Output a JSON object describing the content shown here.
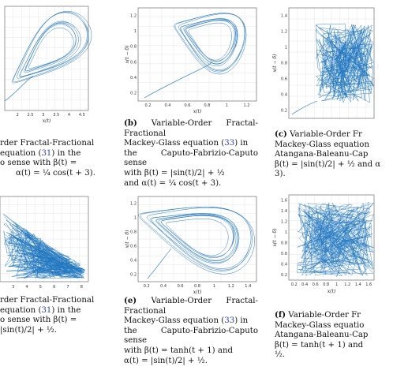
{
  "panels": [
    {
      "id": "a",
      "xlabel": "x(t)",
      "x_ticks": [
        "2",
        "2.5",
        "3",
        "3.5",
        "4",
        "4.5"
      ],
      "y_ticks": [],
      "caption": {
        "label": "",
        "text_1": "rder Fractal-Fractional",
        "text_2": "equation (",
        "ref": "31",
        "text_3": ") in the",
        "text_4": "o sense with β(t) =",
        "text_5": "α(t) = ¼ cos(t + 3)."
      }
    },
    {
      "id": "b",
      "xlabel": "x(t)",
      "ylabel": "x(t − δ)",
      "x_ticks": [
        "0.2",
        "0.4",
        "0.6",
        "0.8",
        "1",
        "1.2"
      ],
      "y_ticks": [
        "0.2",
        "0.4",
        "0.6",
        "0.8",
        "1",
        "1.2"
      ],
      "caption": {
        "label": "(b)",
        "line_1": "Variable-Order Fractal-Fractional",
        "line_2a": "Mackey-Glass equation (",
        "ref": "33",
        "line_2b": ") in",
        "line_3": "the Caputo-Fabrizio-Caputo sense",
        "line_4": "with β(t) = |sin(t)/2| + ½",
        "line_5": "and α(t) = ¼ cos(t + 3)."
      }
    },
    {
      "id": "c",
      "ylabel": "x(t − δ)",
      "y_ticks": [
        "0.2",
        "0.4",
        "0.6",
        "0.8",
        "1",
        "1.2",
        "1.4"
      ],
      "caption": {
        "label": "(c)",
        "line_1": "Variable-Order Fr",
        "line_2": "Mackey-Glass equation",
        "line_3": "Atangana-Baleanu-Cap",
        "line_4": "β(t) = |sin(t)/2| + ½ and α",
        "line_5": "3)."
      }
    },
    {
      "id": "d",
      "x_ticks": [
        "3",
        "4",
        "5",
        "6",
        "7",
        "8"
      ],
      "caption": {
        "line_1": "rder Fractal-Fractional",
        "line_2a": "equation (",
        "ref": "31",
        "line_2b": ") in the",
        "line_3": "o sense with β(t) =",
        "line_4": "|sin(t)/2| + ½."
      }
    },
    {
      "id": "e",
      "xlabel": "x(t)",
      "ylabel": "x(t − δ)",
      "x_ticks": [
        "0.2",
        "0.4",
        "0.6",
        "0.8",
        "1",
        "1.2",
        "1.4"
      ],
      "y_ticks": [
        "0.2",
        "0.4",
        "0.6",
        "0.8",
        "1",
        "1.2"
      ],
      "caption": {
        "label": "(e)",
        "line_1": "Variable-Order Fractal-Fractional",
        "line_2a": "Mackey-Glass equation (",
        "ref": "33",
        "line_2b": ") in",
        "line_3": "the Caputo-Fabrizio-Caputo sense",
        "line_4": "with β(t) = tanh(t + 1) and",
        "line_5": "α(t) = |sin(t)/2| + ½."
      }
    },
    {
      "id": "f",
      "xlabel": "x(t)",
      "ylabel": "x(t − δ)",
      "x_ticks": [
        "0.2",
        "0.4",
        "0.6",
        "0.8",
        "1",
        "1.2",
        "1.4",
        "1.6"
      ],
      "y_ticks": [
        "0.2",
        "0.4",
        "0.6",
        "0.8",
        "1",
        "1.2",
        "1.4",
        "1.6"
      ],
      "caption": {
        "label": "(f)",
        "line_1": "Variable-Order Fr",
        "line_2": "Mackey-Glass equatio",
        "line_3": "Atangana-Baleanu-Cap",
        "line_4": "β(t) = tanh(t + 1) and",
        "line_5": "½."
      }
    }
  ],
  "colors": {
    "curve": "#1f77c0",
    "link": "#2a3fc4",
    "grid": "#e6e6e6"
  }
}
